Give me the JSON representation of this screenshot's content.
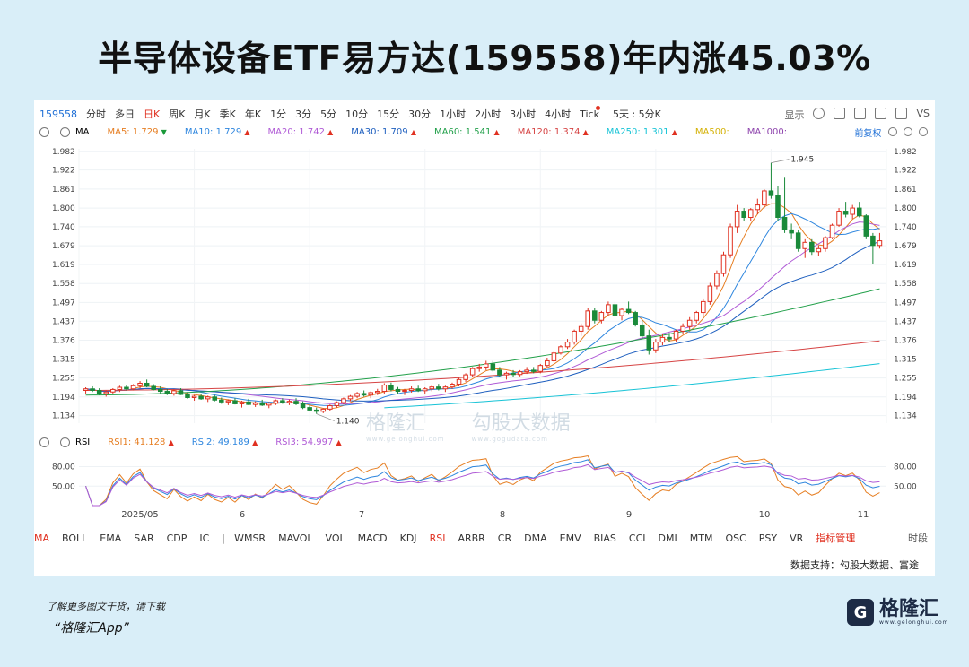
{
  "headline": "半导体设备ETF易方达(159558)年内涨45.03%",
  "toolbar": {
    "code": "159558",
    "timeframes": [
      "分时",
      "多日",
      "日K",
      "周K",
      "月K",
      "季K",
      "年K",
      "1分",
      "3分",
      "5分",
      "10分",
      "15分",
      "30分",
      "1小时",
      "2小时",
      "3小时",
      "4小时",
      "Tick",
      "5天 : 5分K"
    ],
    "active_timeframe": "日K",
    "display_label": "显示",
    "vs_label": "VS"
  },
  "ma_legend": {
    "prefix": "MA",
    "items": [
      {
        "label": "MA5:",
        "value": "1.729",
        "dir": "dn",
        "color": "#e67e22"
      },
      {
        "label": "MA10:",
        "value": "1.729",
        "dir": "up",
        "color": "#2e86de"
      },
      {
        "label": "MA20:",
        "value": "1.742",
        "dir": "up",
        "color": "#b05bd6"
      },
      {
        "label": "MA30:",
        "value": "1.709",
        "dir": "up",
        "color": "#1e5fbf"
      },
      {
        "label": "MA60:",
        "value": "1.541",
        "dir": "up",
        "color": "#22a04a"
      },
      {
        "label": "MA120:",
        "value": "1.374",
        "dir": "up",
        "color": "#d64545"
      },
      {
        "label": "MA250:",
        "value": "1.301",
        "dir": "up",
        "color": "#17c3d6"
      },
      {
        "label": "MA500:",
        "value": "",
        "dir": "",
        "color": "#d4b106"
      },
      {
        "label": "MA1000:",
        "value": "",
        "dir": "",
        "color": "#8e44ad"
      }
    ],
    "right_label": "前复权"
  },
  "rsi_legend": {
    "prefix": "RSI",
    "items": [
      {
        "label": "RSI1:",
        "value": "41.128",
        "dir": "up",
        "color": "#e67e22"
      },
      {
        "label": "RSI2:",
        "value": "49.189",
        "dir": "up",
        "color": "#2e86de"
      },
      {
        "label": "RSI3:",
        "value": "54.997",
        "dir": "up",
        "color": "#b05bd6"
      }
    ]
  },
  "chart_data": {
    "type": "candlestick",
    "y_ticks": [
      "1.982",
      "1.922",
      "1.861",
      "1.800",
      "1.740",
      "1.679",
      "1.619",
      "1.558",
      "1.497",
      "1.437",
      "1.376",
      "1.315",
      "1.255",
      "1.194",
      "1.134"
    ],
    "ylim": [
      1.11,
      1.99
    ],
    "annotations": [
      {
        "text": "1.945",
        "value": 1.945,
        "type": "high"
      },
      {
        "text": "1.140",
        "value": 1.14,
        "type": "low"
      }
    ],
    "x_labels": [
      "2025/05",
      "6",
      "7",
      "8",
      "9",
      "10",
      "11"
    ],
    "candles": [
      [
        1.215,
        1.225,
        1.205,
        1.22
      ],
      [
        1.22,
        1.228,
        1.21,
        1.215
      ],
      [
        1.215,
        1.222,
        1.2,
        1.205
      ],
      [
        1.205,
        1.215,
        1.195,
        1.21
      ],
      [
        1.21,
        1.222,
        1.205,
        1.218
      ],
      [
        1.218,
        1.23,
        1.21,
        1.225
      ],
      [
        1.225,
        1.232,
        1.215,
        1.22
      ],
      [
        1.22,
        1.235,
        1.215,
        1.23
      ],
      [
        1.23,
        1.245,
        1.222,
        1.238
      ],
      [
        1.238,
        1.25,
        1.225,
        1.228
      ],
      [
        1.228,
        1.235,
        1.215,
        1.218
      ],
      [
        1.218,
        1.228,
        1.205,
        1.212
      ],
      [
        1.212,
        1.22,
        1.2,
        1.205
      ],
      [
        1.205,
        1.218,
        1.198,
        1.214
      ],
      [
        1.214,
        1.222,
        1.2,
        1.202
      ],
      [
        1.202,
        1.21,
        1.188,
        1.192
      ],
      [
        1.192,
        1.2,
        1.182,
        1.196
      ],
      [
        1.196,
        1.205,
        1.185,
        1.188
      ],
      [
        1.188,
        1.198,
        1.178,
        1.194
      ],
      [
        1.194,
        1.2,
        1.18,
        1.184
      ],
      [
        1.184,
        1.192,
        1.172,
        1.178
      ],
      [
        1.178,
        1.186,
        1.168,
        1.182
      ],
      [
        1.182,
        1.19,
        1.17,
        1.172
      ],
      [
        1.172,
        1.182,
        1.16,
        1.178
      ],
      [
        1.178,
        1.188,
        1.168,
        1.17
      ],
      [
        1.17,
        1.18,
        1.162,
        1.175
      ],
      [
        1.175,
        1.185,
        1.165,
        1.168
      ],
      [
        1.168,
        1.178,
        1.158,
        1.174
      ],
      [
        1.174,
        1.186,
        1.168,
        1.182
      ],
      [
        1.182,
        1.19,
        1.172,
        1.176
      ],
      [
        1.176,
        1.186,
        1.168,
        1.18
      ],
      [
        1.18,
        1.19,
        1.168,
        1.172
      ],
      [
        1.172,
        1.18,
        1.155,
        1.16
      ],
      [
        1.16,
        1.168,
        1.148,
        1.152
      ],
      [
        1.152,
        1.16,
        1.14,
        1.148
      ],
      [
        1.148,
        1.158,
        1.142,
        1.155
      ],
      [
        1.155,
        1.17,
        1.15,
        1.166
      ],
      [
        1.166,
        1.18,
        1.16,
        1.176
      ],
      [
        1.176,
        1.192,
        1.17,
        1.188
      ],
      [
        1.188,
        1.2,
        1.18,
        1.196
      ],
      [
        1.196,
        1.21,
        1.19,
        1.205
      ],
      [
        1.205,
        1.215,
        1.195,
        1.2
      ],
      [
        1.2,
        1.212,
        1.19,
        1.208
      ],
      [
        1.208,
        1.22,
        1.2,
        1.212
      ],
      [
        1.212,
        1.238,
        1.205,
        1.232
      ],
      [
        1.232,
        1.24,
        1.212,
        1.218
      ],
      [
        1.218,
        1.226,
        1.205,
        1.212
      ],
      [
        1.212,
        1.22,
        1.2,
        1.215
      ],
      [
        1.215,
        1.228,
        1.208,
        1.22
      ],
      [
        1.22,
        1.23,
        1.21,
        1.214
      ],
      [
        1.214,
        1.225,
        1.205,
        1.22
      ],
      [
        1.22,
        1.232,
        1.212,
        1.226
      ],
      [
        1.226,
        1.236,
        1.215,
        1.22
      ],
      [
        1.22,
        1.23,
        1.21,
        1.226
      ],
      [
        1.226,
        1.24,
        1.22,
        1.235
      ],
      [
        1.235,
        1.255,
        1.228,
        1.25
      ],
      [
        1.25,
        1.27,
        1.242,
        1.265
      ],
      [
        1.265,
        1.29,
        1.258,
        1.285
      ],
      [
        1.285,
        1.3,
        1.275,
        1.29
      ],
      [
        1.29,
        1.31,
        1.28,
        1.3
      ],
      [
        1.3,
        1.31,
        1.275,
        1.28
      ],
      [
        1.28,
        1.29,
        1.258,
        1.265
      ],
      [
        1.265,
        1.275,
        1.25,
        1.27
      ],
      [
        1.27,
        1.28,
        1.258,
        1.266
      ],
      [
        1.266,
        1.28,
        1.26,
        1.275
      ],
      [
        1.275,
        1.29,
        1.268,
        1.28
      ],
      [
        1.28,
        1.29,
        1.27,
        1.276
      ],
      [
        1.276,
        1.3,
        1.27,
        1.295
      ],
      [
        1.295,
        1.32,
        1.288,
        1.31
      ],
      [
        1.31,
        1.34,
        1.305,
        1.335
      ],
      [
        1.335,
        1.36,
        1.33,
        1.355
      ],
      [
        1.355,
        1.38,
        1.348,
        1.37
      ],
      [
        1.37,
        1.41,
        1.362,
        1.405
      ],
      [
        1.405,
        1.43,
        1.39,
        1.42
      ],
      [
        1.42,
        1.48,
        1.41,
        1.47
      ],
      [
        1.47,
        1.48,
        1.43,
        1.44
      ],
      [
        1.44,
        1.47,
        1.43,
        1.465
      ],
      [
        1.465,
        1.5,
        1.455,
        1.49
      ],
      [
        1.49,
        1.5,
        1.45,
        1.455
      ],
      [
        1.455,
        1.48,
        1.44,
        1.475
      ],
      [
        1.475,
        1.5,
        1.46,
        1.465
      ],
      [
        1.465,
        1.47,
        1.42,
        1.425
      ],
      [
        1.425,
        1.44,
        1.38,
        1.39
      ],
      [
        1.39,
        1.41,
        1.33,
        1.345
      ],
      [
        1.345,
        1.38,
        1.335,
        1.37
      ],
      [
        1.37,
        1.395,
        1.36,
        1.385
      ],
      [
        1.385,
        1.4,
        1.37,
        1.38
      ],
      [
        1.38,
        1.41,
        1.372,
        1.405
      ],
      [
        1.405,
        1.43,
        1.395,
        1.42
      ],
      [
        1.42,
        1.45,
        1.41,
        1.44
      ],
      [
        1.44,
        1.47,
        1.43,
        1.465
      ],
      [
        1.465,
        1.51,
        1.455,
        1.5
      ],
      [
        1.5,
        1.56,
        1.49,
        1.55
      ],
      [
        1.55,
        1.6,
        1.54,
        1.59
      ],
      [
        1.59,
        1.66,
        1.58,
        1.65
      ],
      [
        1.65,
        1.75,
        1.64,
        1.74
      ],
      [
        1.74,
        1.81,
        1.72,
        1.79
      ],
      [
        1.79,
        1.8,
        1.76,
        1.77
      ],
      [
        1.77,
        1.8,
        1.76,
        1.795
      ],
      [
        1.795,
        1.83,
        1.78,
        1.81
      ],
      [
        1.81,
        1.86,
        1.8,
        1.855
      ],
      [
        1.855,
        1.945,
        1.83,
        1.84
      ],
      [
        1.84,
        1.87,
        1.76,
        1.77
      ],
      [
        1.77,
        1.9,
        1.72,
        1.73
      ],
      [
        1.73,
        1.75,
        1.7,
        1.72
      ],
      [
        1.72,
        1.73,
        1.66,
        1.67
      ],
      [
        1.67,
        1.7,
        1.64,
        1.69
      ],
      [
        1.69,
        1.7,
        1.65,
        1.66
      ],
      [
        1.66,
        1.68,
        1.645,
        1.67
      ],
      [
        1.67,
        1.71,
        1.66,
        1.705
      ],
      [
        1.705,
        1.75,
        1.7,
        1.745
      ],
      [
        1.745,
        1.8,
        1.74,
        1.79
      ],
      [
        1.79,
        1.82,
        1.77,
        1.78
      ],
      [
        1.78,
        1.81,
        1.765,
        1.8
      ],
      [
        1.8,
        1.82,
        1.77,
        1.775
      ],
      [
        1.775,
        1.78,
        1.7,
        1.71
      ],
      [
        1.71,
        1.72,
        1.62,
        1.68
      ],
      [
        1.68,
        1.72,
        1.67,
        1.695
      ]
    ],
    "rsi_ticks": [
      "80.00",
      "50.00"
    ],
    "rsi_ylim": [
      20,
      100
    ]
  },
  "indicators": {
    "items": [
      "MA",
      "BOLL",
      "EMA",
      "SAR",
      "CDP",
      "IC",
      "WMSR",
      "MAVOL",
      "VOL",
      "MACD",
      "KDJ",
      "RSI",
      "ARBR",
      "CR",
      "DMA",
      "EMV",
      "BIAS",
      "CCI",
      "DMI",
      "MTM",
      "OSC",
      "PSY",
      "VR"
    ],
    "active": [
      "MA",
      "RSI"
    ],
    "manager": "指标管理",
    "last": "时段"
  },
  "source": "数据支持：勾股大数据、富途",
  "watermark": {
    "left": "格隆汇",
    "left_sub": "www.gelonghui.com",
    "right": "勾股大数据",
    "right_sub": "www.gogudata.com"
  },
  "footer": {
    "line1": "了解更多图文干货，请下载",
    "line2": "“格隆汇App”"
  },
  "logo": {
    "mark": "G",
    "text": "格隆汇",
    "sub": "www.gelonghui.com"
  }
}
